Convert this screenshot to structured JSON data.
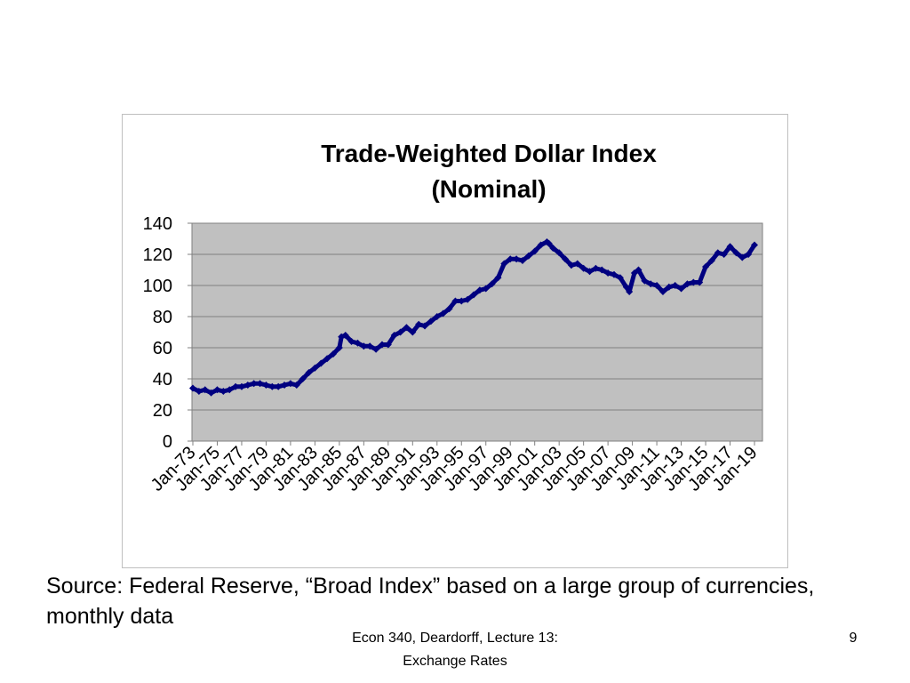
{
  "slide": {
    "source_note": "Source:  Federal Reserve, “Broad Index” based on a large group of currencies, monthly data",
    "footer_line1": "Econ 340, Deardorff, Lecture 13:",
    "footer_line2": "Exchange Rates",
    "page_number": "9"
  },
  "chart_data": {
    "type": "line",
    "title": "Trade-Weighted Dollar Index",
    "subtitle": "(Nominal)",
    "xlabel": "",
    "ylabel": "",
    "ylim": [
      0,
      140
    ],
    "y_ticks": [
      0,
      20,
      40,
      60,
      80,
      100,
      120,
      140
    ],
    "x_tick_labels": [
      "Jan-73",
      "Jan-75",
      "Jan-77",
      "Jan-79",
      "Jan-81",
      "Jan-83",
      "Jan-85",
      "Jan-87",
      "Jan-89",
      "Jan-91",
      "Jan-93",
      "Jan-95",
      "Jan-97",
      "Jan-99",
      "Jan-01",
      "Jan-03",
      "Jan-05",
      "Jan-07",
      "Jan-09",
      "Jan-11",
      "Jan-13",
      "Jan-15",
      "Jan-17",
      "Jan-19"
    ],
    "x_range": [
      "Jan-73",
      "Jan-19"
    ],
    "grid": true,
    "colors": {
      "plot_background": "#c0c0c0",
      "series": "#000080",
      "gridline": "#808080"
    },
    "series": [
      {
        "marker": "diamond",
        "x": [
          "1973-01",
          "1973-07",
          "1974-01",
          "1974-07",
          "1975-01",
          "1975-07",
          "1976-01",
          "1976-07",
          "1977-01",
          "1977-07",
          "1978-01",
          "1978-07",
          "1979-01",
          "1979-07",
          "1980-01",
          "1980-07",
          "1981-01",
          "1981-07",
          "1982-01",
          "1982-07",
          "1983-01",
          "1983-07",
          "1984-01",
          "1984-07",
          "1985-01",
          "1985-03",
          "1985-07",
          "1986-01",
          "1986-07",
          "1987-01",
          "1987-07",
          "1988-01",
          "1988-07",
          "1989-01",
          "1989-07",
          "1990-01",
          "1990-07",
          "1991-01",
          "1991-07",
          "1992-01",
          "1992-07",
          "1993-01",
          "1993-07",
          "1994-01",
          "1994-07",
          "1995-01",
          "1995-07",
          "1996-01",
          "1996-07",
          "1997-01",
          "1997-07",
          "1998-01",
          "1998-07",
          "1999-01",
          "1999-07",
          "2000-01",
          "2000-07",
          "2001-01",
          "2001-07",
          "2002-01",
          "2002-03",
          "2002-07",
          "2003-01",
          "2003-07",
          "2004-01",
          "2004-07",
          "2005-01",
          "2005-07",
          "2006-01",
          "2006-07",
          "2007-01",
          "2007-07",
          "2008-01",
          "2008-07",
          "2008-10",
          "2009-03",
          "2009-07",
          "2010-01",
          "2010-07",
          "2011-01",
          "2011-07",
          "2012-01",
          "2012-07",
          "2013-01",
          "2013-07",
          "2014-01",
          "2014-07",
          "2015-01",
          "2015-07",
          "2016-01",
          "2016-07",
          "2017-01",
          "2017-07",
          "2018-01",
          "2018-07",
          "2019-01"
        ],
        "y": [
          34,
          32,
          33,
          31,
          33,
          32,
          33,
          35,
          35,
          36,
          37,
          37,
          36,
          35,
          35,
          36,
          37,
          36,
          40,
          44,
          47,
          50,
          53,
          56,
          60,
          67,
          68,
          64,
          63,
          61,
          61,
          59,
          62,
          62,
          68,
          70,
          73,
          70,
          75,
          74,
          77,
          80,
          82,
          85,
          90,
          90,
          91,
          94,
          97,
          98,
          101,
          105,
          114,
          117,
          117,
          116,
          119,
          122,
          126,
          128,
          127,
          124,
          121,
          117,
          113,
          114,
          111,
          109,
          111,
          110,
          108,
          107,
          105,
          99,
          96,
          108,
          110,
          103,
          101,
          100,
          96,
          99,
          100,
          98,
          101,
          102,
          102,
          112,
          116,
          121,
          120,
          125,
          121,
          118,
          120,
          126
        ]
      }
    ]
  }
}
